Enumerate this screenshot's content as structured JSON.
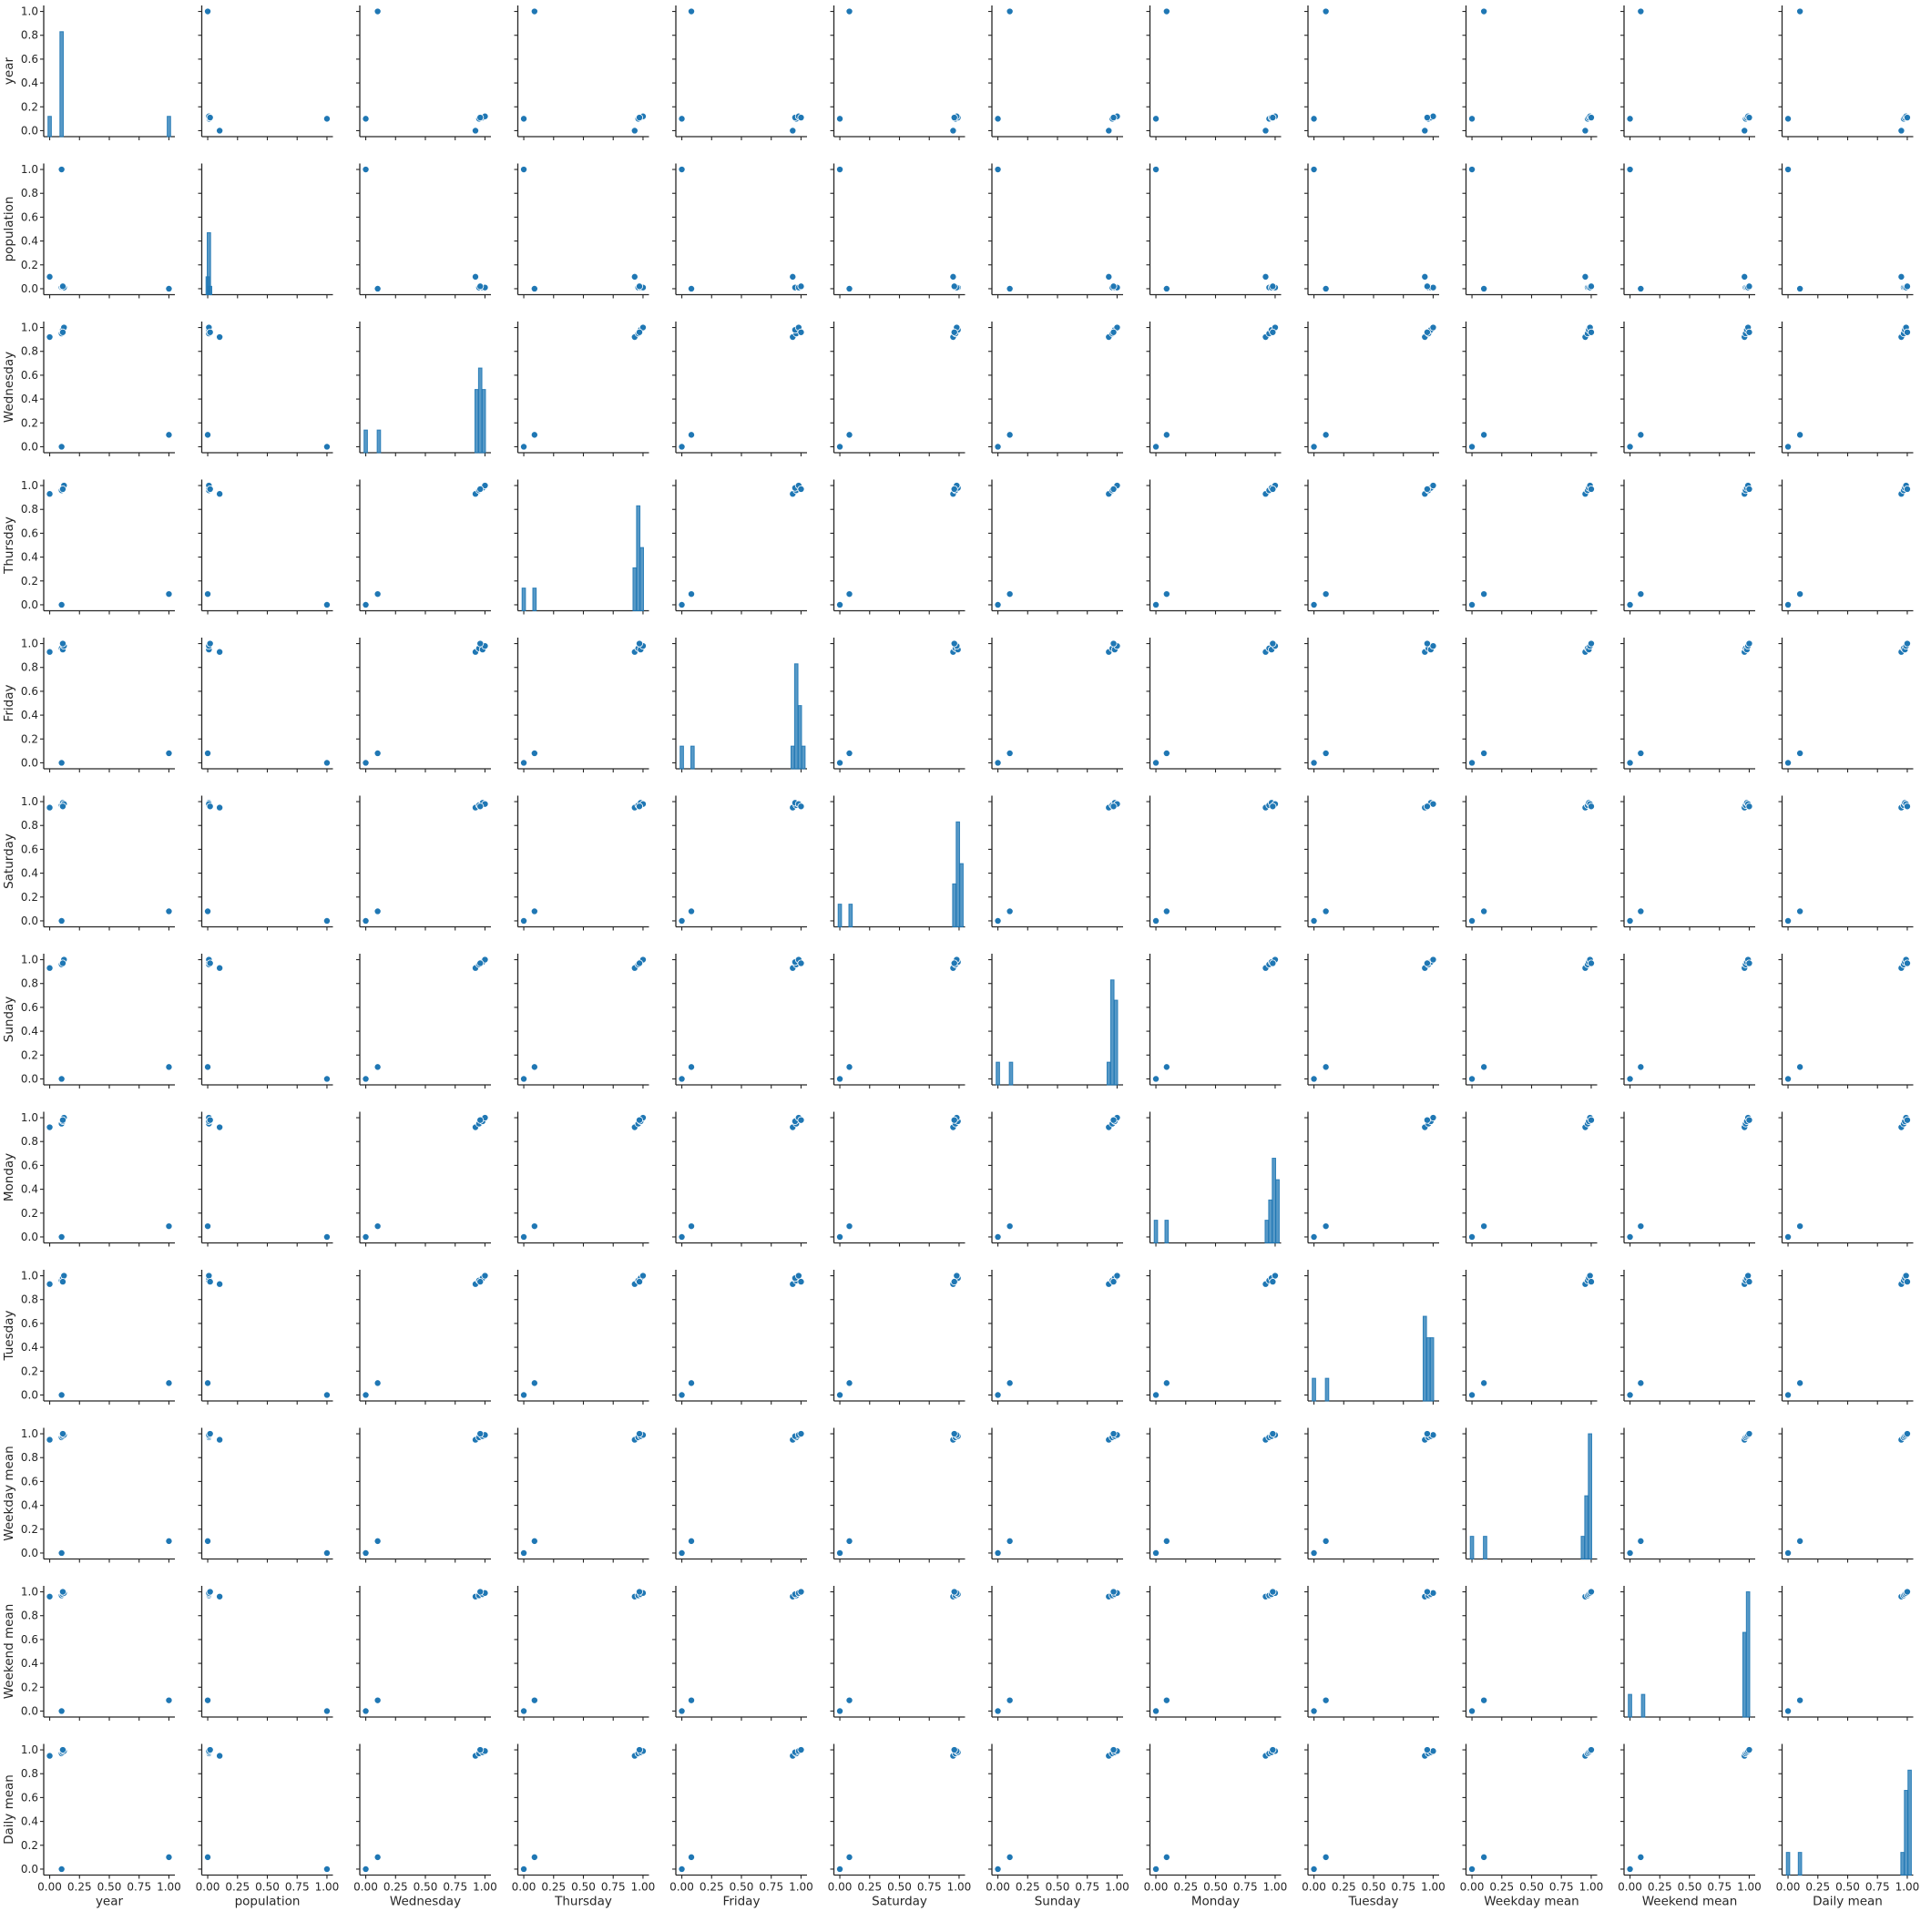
{
  "chart_data": {
    "type": "pairplot",
    "variables": [
      "year",
      "population",
      "Wednesday",
      "Thursday",
      "Friday",
      "Saturday",
      "Sunday",
      "Monday",
      "Tuesday",
      "Weekday mean",
      "Weekend mean",
      "Daily mean"
    ],
    "xlim": [
      -0.05,
      1.05
    ],
    "ylim": [
      -0.05,
      1.05
    ],
    "ticks": [
      0.0,
      0.25,
      0.5,
      0.75,
      1.0
    ],
    "x_tick_labels": [
      "0.00",
      "0.25",
      "0.50",
      "0.75",
      "1.00"
    ],
    "y_tick_labels": [
      "0.0",
      "0.2",
      "0.4",
      "0.6",
      "0.8",
      "1.0"
    ],
    "y_tick_values": [
      0.0,
      0.2,
      0.4,
      0.6,
      0.8,
      1.0
    ],
    "colors": {
      "marker": "#1f77b4",
      "axis": "#262626",
      "background": "#ffffff"
    },
    "diagonal": "histogram",
    "offdiagonal": "scatter",
    "histograms": [
      {
        "variable": "year",
        "bars": [
          [
            0.0,
            0.12
          ],
          [
            0.1,
            0.83
          ],
          [
            1.0,
            0.12
          ]
        ]
      },
      {
        "variable": "population",
        "bars": [
          [
            0.0,
            0.1
          ],
          [
            0.01,
            0.47
          ],
          [
            0.02,
            0.02
          ]
        ]
      },
      {
        "variable": "Wednesday",
        "bars": [
          [
            0.0,
            0.14
          ],
          [
            0.11,
            0.14
          ],
          [
            0.93,
            0.48
          ],
          [
            0.96,
            0.66
          ],
          [
            0.99,
            0.48
          ]
        ]
      },
      {
        "variable": "Thursday",
        "bars": [
          [
            0.0,
            0.14
          ],
          [
            0.09,
            0.14
          ],
          [
            0.93,
            0.31
          ],
          [
            0.96,
            0.83
          ],
          [
            0.99,
            0.48
          ]
        ]
      },
      {
        "variable": "Friday",
        "bars": [
          [
            0.0,
            0.14
          ],
          [
            0.09,
            0.14
          ],
          [
            0.93,
            0.14
          ],
          [
            0.96,
            0.83
          ],
          [
            0.99,
            0.48
          ],
          [
            1.02,
            0.14
          ]
        ]
      },
      {
        "variable": "Saturday",
        "bars": [
          [
            0.0,
            0.14
          ],
          [
            0.09,
            0.14
          ],
          [
            0.96,
            0.31
          ],
          [
            0.99,
            0.83
          ],
          [
            1.02,
            0.48
          ]
        ]
      },
      {
        "variable": "Sunday",
        "bars": [
          [
            0.0,
            0.14
          ],
          [
            0.11,
            0.14
          ],
          [
            0.93,
            0.14
          ],
          [
            0.96,
            0.83
          ],
          [
            0.99,
            0.66
          ]
        ]
      },
      {
        "variable": "Monday",
        "bars": [
          [
            0.0,
            0.14
          ],
          [
            0.09,
            0.14
          ],
          [
            0.93,
            0.14
          ],
          [
            0.96,
            0.31
          ],
          [
            0.99,
            0.66
          ],
          [
            1.02,
            0.48
          ]
        ]
      },
      {
        "variable": "Tuesday",
        "bars": [
          [
            0.0,
            0.14
          ],
          [
            0.11,
            0.14
          ],
          [
            0.93,
            0.66
          ],
          [
            0.96,
            0.48
          ],
          [
            0.99,
            0.48
          ]
        ]
      },
      {
        "variable": "Weekday mean",
        "bars": [
          [
            0.0,
            0.14
          ],
          [
            0.11,
            0.14
          ],
          [
            0.93,
            0.14
          ],
          [
            0.96,
            0.48
          ],
          [
            0.99,
            1.0
          ]
        ]
      },
      {
        "variable": "Weekend mean",
        "bars": [
          [
            0.0,
            0.14
          ],
          [
            0.11,
            0.14
          ],
          [
            0.96,
            0.66
          ],
          [
            0.99,
            1.0
          ]
        ]
      },
      {
        "variable": "Daily mean",
        "bars": [
          [
            0.0,
            0.14
          ],
          [
            0.1,
            0.14
          ],
          [
            0.96,
            0.14
          ],
          [
            0.99,
            0.66
          ],
          [
            1.02,
            0.83
          ]
        ]
      }
    ],
    "points": [
      {
        "year": 0.1,
        "population": 1.0,
        "Wednesday": 0.0,
        "Thursday": 0.0,
        "Friday": 0.0,
        "Saturday": 0.0,
        "Sunday": 0.0,
        "Monday": 0.0,
        "Tuesday": 0.0,
        "Weekday mean": 0.0,
        "Weekend mean": 0.0,
        "Daily mean": 0.0
      },
      {
        "year": 1.0,
        "population": 0.0,
        "Wednesday": 0.1,
        "Thursday": 0.09,
        "Friday": 0.08,
        "Saturday": 0.08,
        "Sunday": 0.1,
        "Monday": 0.09,
        "Tuesday": 0.1,
        "Weekday mean": 0.1,
        "Weekend mean": 0.09,
        "Daily mean": 0.1
      },
      {
        "year": 0.0,
        "population": 0.1,
        "Wednesday": 0.92,
        "Thursday": 0.93,
        "Friday": 0.93,
        "Saturday": 0.95,
        "Sunday": 0.93,
        "Monday": 0.92,
        "Tuesday": 0.93,
        "Weekday mean": 0.95,
        "Weekend mean": 0.96,
        "Daily mean": 0.95
      },
      {
        "year": 0.1,
        "population": 0.01,
        "Wednesday": 0.95,
        "Thursday": 0.96,
        "Friday": 0.96,
        "Saturday": 0.97,
        "Sunday": 0.96,
        "Monday": 0.95,
        "Tuesday": 0.96,
        "Weekday mean": 0.97,
        "Weekend mean": 0.97,
        "Daily mean": 0.97
      },
      {
        "year": 0.11,
        "population": 0.01,
        "Wednesday": 0.98,
        "Thursday": 0.98,
        "Friday": 0.95,
        "Saturday": 0.99,
        "Sunday": 0.98,
        "Monday": 0.97,
        "Tuesday": 0.98,
        "Weekday mean": 0.98,
        "Weekend mean": 0.98,
        "Daily mean": 0.98
      },
      {
        "year": 0.12,
        "population": 0.01,
        "Wednesday": 1.0,
        "Thursday": 1.0,
        "Friday": 0.98,
        "Saturday": 0.98,
        "Sunday": 1.0,
        "Monday": 1.0,
        "Tuesday": 1.0,
        "Weekday mean": 0.99,
        "Weekend mean": 0.99,
        "Daily mean": 0.99
      },
      {
        "year": 0.11,
        "population": 0.02,
        "Wednesday": 0.96,
        "Thursday": 0.97,
        "Friday": 1.0,
        "Saturday": 0.96,
        "Sunday": 0.97,
        "Monday": 0.98,
        "Tuesday": 0.95,
        "Weekday mean": 1.0,
        "Weekend mean": 1.0,
        "Daily mean": 1.0
      }
    ]
  }
}
